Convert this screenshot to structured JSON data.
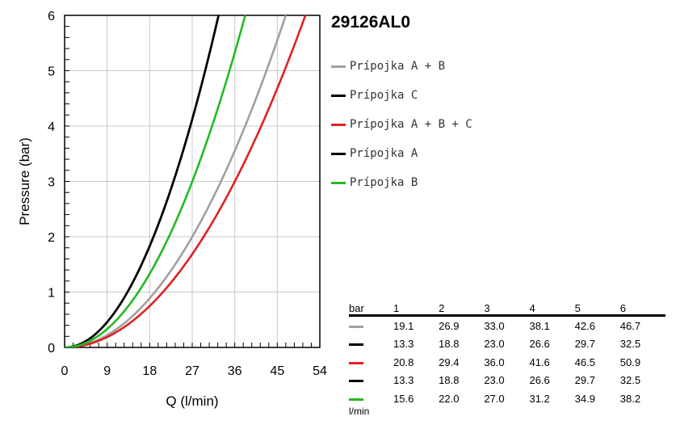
{
  "product_code": "29126AL0",
  "chart_data": {
    "type": "line",
    "title": "",
    "xlabel": "Q (l/min)",
    "ylabel": "Pressure (bar)",
    "xlim": [
      0,
      54
    ],
    "ylim": [
      0,
      6
    ],
    "xticks": [
      "0",
      "9",
      "18",
      "27",
      "36",
      "45",
      "54"
    ],
    "yticks": [
      "0",
      "1",
      "2",
      "3",
      "4",
      "5",
      "6"
    ],
    "grid": true,
    "legend_position": "right",
    "pressure_points": [
      1,
      2,
      3,
      4,
      5,
      6
    ],
    "series": [
      {
        "name": "Prípojka A + B",
        "color": "#a0a0a0",
        "values": [
          19.1,
          26.9,
          33.0,
          38.1,
          42.6,
          46.7
        ]
      },
      {
        "name": "Prípojka C",
        "color": "#000000",
        "values": [
          13.3,
          18.8,
          23.0,
          26.6,
          29.7,
          32.5
        ]
      },
      {
        "name": "Prípojka A + B + C",
        "color": "#e02020",
        "values": [
          20.8,
          29.4,
          36.0,
          41.6,
          46.5,
          50.9
        ]
      },
      {
        "name": "Prípojka A",
        "color": "#000000",
        "values": [
          13.3,
          18.8,
          23.0,
          26.6,
          29.7,
          32.5
        ]
      },
      {
        "name": "Prípojka B",
        "color": "#22bb22",
        "values": [
          15.6,
          22.0,
          27.0,
          31.2,
          34.9,
          38.2
        ]
      }
    ]
  },
  "table": {
    "header_unit": "bar",
    "columns": [
      "1",
      "2",
      "3",
      "4",
      "5",
      "6"
    ],
    "rows": [
      {
        "color": "#a0a0a0",
        "values": [
          "19.1",
          "26.9",
          "33.0",
          "38.1",
          "42.6",
          "46.7"
        ]
      },
      {
        "color": "#000000",
        "values": [
          "13.3",
          "18.8",
          "23.0",
          "26.6",
          "29.7",
          "32.5"
        ]
      },
      {
        "color": "#e02020",
        "values": [
          "20.8",
          "29.4",
          "36.0",
          "41.6",
          "46.5",
          "50.9"
        ]
      },
      {
        "color": "#000000",
        "values": [
          "13.3",
          "18.8",
          "23.0",
          "26.6",
          "29.7",
          "32.5"
        ]
      },
      {
        "color": "#22bb22",
        "values": [
          "15.6",
          "22.0",
          "27.0",
          "31.2",
          "34.9",
          "38.2"
        ]
      }
    ],
    "footer_unit": "l/min"
  }
}
